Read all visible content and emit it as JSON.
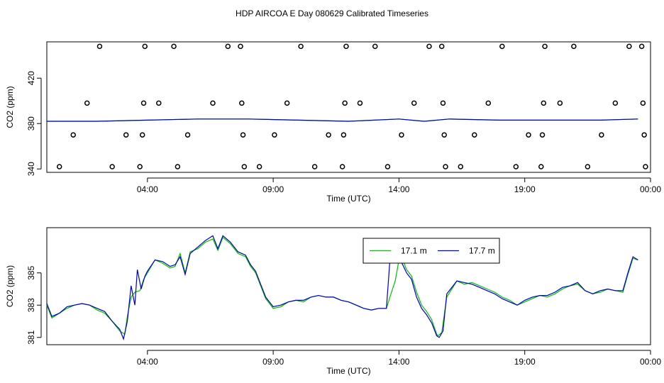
{
  "title": "HDP AIRCOA E  Day 080629  Calibrated Timeseries",
  "chart_data": [
    {
      "type": "scatter",
      "xlabel": "Time (UTC)",
      "ylabel": "CO2 (ppm)",
      "xlim": [
        0,
        24
      ],
      "ylim": [
        337,
        452
      ],
      "x_ticks": [
        {
          "value": 4,
          "label": "04:00"
        },
        {
          "value": 9,
          "label": "09:00"
        },
        {
          "value": 14,
          "label": "14:00"
        },
        {
          "value": 19,
          "label": "19:00"
        },
        {
          "value": 24,
          "label": "00:00"
        }
      ],
      "y_ticks": [
        {
          "value": 340,
          "label": "340"
        },
        {
          "value": 380,
          "label": "380"
        },
        {
          "value": 420,
          "label": "420"
        }
      ],
      "points": [
        {
          "x": 0.5,
          "y": 342
        },
        {
          "x": 1.05,
          "y": 370
        },
        {
          "x": 1.6,
          "y": 398
        },
        {
          "x": 2.1,
          "y": 448
        },
        {
          "x": 2.6,
          "y": 342
        },
        {
          "x": 3.15,
          "y": 370
        },
        {
          "x": 3.7,
          "y": 342
        },
        {
          "x": 3.8,
          "y": 370
        },
        {
          "x": 3.85,
          "y": 398
        },
        {
          "x": 3.9,
          "y": 448
        },
        {
          "x": 4.45,
          "y": 398
        },
        {
          "x": 5.05,
          "y": 448
        },
        {
          "x": 5.2,
          "y": 342
        },
        {
          "x": 5.6,
          "y": 370
        },
        {
          "x": 6.6,
          "y": 398
        },
        {
          "x": 7.2,
          "y": 448
        },
        {
          "x": 7.7,
          "y": 448
        },
        {
          "x": 7.75,
          "y": 398
        },
        {
          "x": 7.8,
          "y": 370
        },
        {
          "x": 7.85,
          "y": 342
        },
        {
          "x": 8.45,
          "y": 342
        },
        {
          "x": 9.05,
          "y": 370
        },
        {
          "x": 9.55,
          "y": 398
        },
        {
          "x": 10.1,
          "y": 448
        },
        {
          "x": 10.65,
          "y": 342
        },
        {
          "x": 11.2,
          "y": 370
        },
        {
          "x": 11.75,
          "y": 342
        },
        {
          "x": 11.8,
          "y": 370
        },
        {
          "x": 11.85,
          "y": 398
        },
        {
          "x": 11.9,
          "y": 448
        },
        {
          "x": 12.45,
          "y": 398
        },
        {
          "x": 13.05,
          "y": 448
        },
        {
          "x": 13.55,
          "y": 342
        },
        {
          "x": 14.1,
          "y": 370
        },
        {
          "x": 14.6,
          "y": 398
        },
        {
          "x": 15.2,
          "y": 448
        },
        {
          "x": 15.7,
          "y": 448
        },
        {
          "x": 15.75,
          "y": 398
        },
        {
          "x": 15.8,
          "y": 370
        },
        {
          "x": 15.85,
          "y": 342
        },
        {
          "x": 16.45,
          "y": 342
        },
        {
          "x": 17.0,
          "y": 370
        },
        {
          "x": 17.55,
          "y": 398
        },
        {
          "x": 18.1,
          "y": 448
        },
        {
          "x": 18.65,
          "y": 342
        },
        {
          "x": 19.15,
          "y": 370
        },
        {
          "x": 19.65,
          "y": 342
        },
        {
          "x": 19.7,
          "y": 370
        },
        {
          "x": 19.75,
          "y": 398
        },
        {
          "x": 19.8,
          "y": 448
        },
        {
          "x": 20.4,
          "y": 398
        },
        {
          "x": 20.95,
          "y": 448
        },
        {
          "x": 21.5,
          "y": 342
        },
        {
          "x": 22.05,
          "y": 370
        },
        {
          "x": 22.6,
          "y": 398
        },
        {
          "x": 23.15,
          "y": 448
        },
        {
          "x": 23.65,
          "y": 448
        },
        {
          "x": 23.7,
          "y": 398
        },
        {
          "x": 23.75,
          "y": 370
        },
        {
          "x": 23.8,
          "y": 342
        }
      ],
      "series": [
        {
          "name": "17.1 m",
          "color": "#00c000",
          "x": [
            0,
            2,
            4,
            6,
            8,
            10,
            12,
            14,
            15,
            16,
            18,
            20,
            22,
            23.5
          ],
          "y": [
            382,
            382,
            383,
            384,
            384,
            383,
            382,
            384,
            382,
            384,
            383,
            383,
            383,
            384
          ]
        },
        {
          "name": "17.7 m",
          "color": "#0000c8",
          "x": [
            0,
            2,
            4,
            6,
            8,
            10,
            12,
            14,
            15,
            16,
            18,
            20,
            22,
            23.5
          ],
          "y": [
            382,
            382,
            383,
            384,
            384,
            383,
            382,
            384,
            382,
            384,
            383,
            383,
            383,
            384
          ]
        }
      ]
    },
    {
      "type": "line",
      "xlabel": "Time (UTC)",
      "ylabel": "CO2 (ppm)",
      "xlim": [
        0,
        24
      ],
      "ylim": [
        380.55,
        387.8
      ],
      "x_ticks": [
        {
          "value": 4,
          "label": "04:00"
        },
        {
          "value": 9,
          "label": "09:00"
        },
        {
          "value": 14,
          "label": "14:00"
        },
        {
          "value": 19,
          "label": "19:00"
        },
        {
          "value": 24,
          "label": "00:00"
        }
      ],
      "y_ticks": [
        {
          "value": 381,
          "label": "381"
        },
        {
          "value": 383,
          "label": "383"
        },
        {
          "value": 385,
          "label": "385"
        }
      ],
      "legend_position": "top-right",
      "series": [
        {
          "name": "17.1 m",
          "color": "#00c000",
          "x": [
            0.0,
            0.2,
            0.5,
            0.8,
            1.1,
            1.4,
            1.7,
            2.0,
            2.3,
            2.6,
            2.9,
            3.1,
            3.2,
            3.35,
            3.5,
            3.7,
            3.85,
            4.0,
            4.3,
            4.6,
            4.9,
            5.1,
            5.3,
            5.5,
            5.7,
            6.0,
            6.3,
            6.6,
            6.8,
            7.0,
            7.3,
            7.6,
            7.9,
            8.1,
            8.3,
            8.5,
            8.7,
            9.0,
            9.3,
            9.6,
            9.9,
            10.2,
            10.5,
            10.8,
            11.1,
            11.4,
            11.7,
            12.0,
            12.3,
            12.6,
            12.9,
            13.2,
            13.5,
            13.7,
            13.85,
            14.0,
            14.15,
            14.3,
            14.5,
            14.7,
            14.9,
            15.1,
            15.3,
            15.5,
            15.55,
            15.7,
            15.9,
            16.1,
            16.3,
            16.6,
            16.9,
            17.2,
            17.5,
            17.8,
            18.1,
            18.4,
            18.7,
            19.0,
            19.3,
            19.6,
            19.9,
            20.2,
            20.5,
            20.8,
            21.1,
            21.4,
            21.7,
            22.0,
            22.3,
            22.6,
            22.9,
            23.1,
            23.3,
            23.5
          ],
          "y": [
            383.0,
            382.2,
            382.5,
            382.8,
            383.0,
            383.1,
            383.0,
            382.7,
            382.5,
            382.0,
            381.4,
            381.2,
            382.3,
            383.5,
            383.8,
            383.9,
            384.6,
            385.0,
            385.8,
            385.6,
            385.3,
            385.4,
            386.2,
            385.0,
            386.3,
            386.5,
            386.9,
            387.1,
            386.4,
            387.2,
            386.8,
            386.2,
            386.0,
            385.4,
            385.0,
            384.2,
            383.4,
            382.8,
            382.9,
            383.2,
            383.3,
            383.2,
            383.5,
            383.6,
            383.5,
            383.5,
            383.3,
            383.2,
            383.0,
            382.8,
            382.7,
            382.8,
            382.8,
            383.8,
            384.5,
            385.8,
            385.8,
            385.2,
            384.8,
            383.8,
            383.0,
            382.6,
            382.1,
            381.2,
            381.1,
            381.3,
            383.5,
            384.0,
            384.5,
            384.3,
            384.4,
            384.2,
            384.0,
            383.8,
            383.5,
            383.3,
            383.0,
            383.2,
            383.4,
            383.6,
            383.5,
            383.7,
            384.0,
            384.2,
            384.3,
            383.9,
            383.7,
            383.8,
            384.0,
            383.9,
            383.8,
            384.9,
            385.9,
            385.8
          ]
        },
        {
          "name": "17.7 m",
          "color": "#0000c8",
          "x": [
            0.0,
            0.2,
            0.5,
            0.8,
            1.1,
            1.4,
            1.7,
            2.0,
            2.3,
            2.6,
            2.9,
            3.05,
            3.2,
            3.35,
            3.5,
            3.6,
            3.75,
            3.9,
            4.0,
            4.3,
            4.6,
            4.9,
            5.1,
            5.3,
            5.5,
            5.7,
            6.0,
            6.3,
            6.6,
            6.8,
            7.0,
            7.3,
            7.6,
            7.9,
            8.1,
            8.3,
            8.5,
            8.7,
            9.0,
            9.3,
            9.6,
            9.9,
            10.2,
            10.5,
            10.8,
            11.1,
            11.4,
            11.7,
            12.0,
            12.3,
            12.6,
            12.9,
            13.2,
            13.5,
            13.65,
            13.8,
            14.0,
            14.15,
            14.3,
            14.5,
            14.7,
            14.9,
            15.1,
            15.3,
            15.5,
            15.6,
            15.75,
            15.9,
            16.1,
            16.3,
            16.6,
            16.9,
            17.2,
            17.5,
            17.8,
            18.1,
            18.4,
            18.7,
            19.0,
            19.3,
            19.6,
            19.9,
            20.2,
            20.5,
            20.8,
            21.1,
            21.4,
            21.7,
            22.0,
            22.3,
            22.6,
            22.9,
            23.1,
            23.3,
            23.5
          ],
          "y": [
            383.1,
            382.3,
            382.5,
            382.9,
            383.0,
            383.1,
            383.0,
            382.8,
            382.6,
            382.0,
            381.5,
            380.9,
            382.0,
            384.2,
            383.0,
            385.2,
            384.0,
            384.8,
            385.1,
            385.8,
            385.7,
            385.4,
            385.5,
            386.0,
            384.9,
            386.2,
            386.6,
            387.0,
            387.3,
            386.5,
            387.3,
            386.9,
            386.3,
            386.1,
            385.5,
            385.1,
            384.3,
            383.5,
            382.9,
            383.0,
            383.2,
            383.3,
            383.3,
            383.5,
            383.6,
            383.5,
            383.5,
            383.3,
            383.2,
            383.0,
            382.8,
            382.7,
            382.8,
            382.8,
            386.0,
            385.8,
            385.9,
            385.5,
            385.0,
            384.6,
            383.5,
            382.8,
            382.4,
            381.9,
            381.1,
            381.0,
            381.4,
            383.7,
            384.1,
            384.5,
            384.4,
            384.3,
            384.1,
            383.9,
            383.7,
            383.4,
            383.2,
            383.0,
            383.3,
            383.5,
            383.6,
            383.6,
            383.8,
            384.1,
            384.2,
            384.4,
            383.9,
            383.7,
            383.9,
            384.0,
            383.9,
            383.9,
            385.0,
            386.0,
            385.8
          ]
        }
      ]
    }
  ]
}
